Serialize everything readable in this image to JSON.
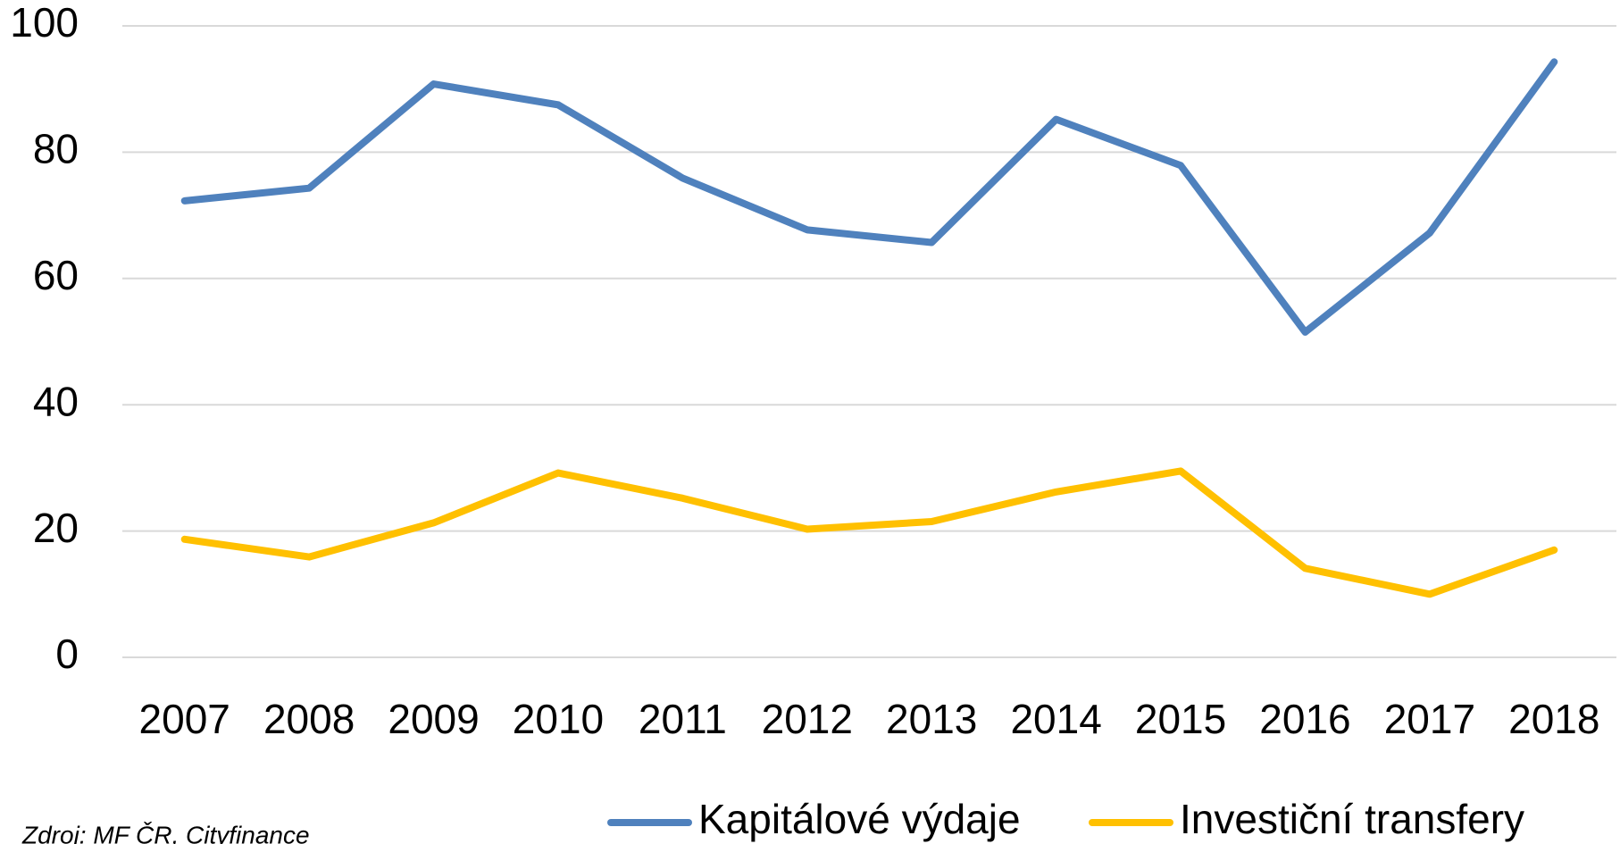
{
  "chart_data": {
    "type": "line",
    "categories": [
      "2007",
      "2008",
      "2009",
      "2010",
      "2011",
      "2012",
      "2013",
      "2014",
      "2015",
      "2016",
      "2017",
      "2018"
    ],
    "series": [
      {
        "name": "Kapitálové výdaje",
        "color": "#4f81bd",
        "values": [
          72.3,
          74.3,
          90.8,
          87.5,
          75.9,
          67.7,
          65.7,
          85.2,
          77.9,
          51.5,
          67.2,
          94.3
        ]
      },
      {
        "name": "Investiční transfery",
        "color": "#ffc000",
        "values": [
          18.7,
          15.9,
          21.3,
          29.2,
          25.2,
          20.3,
          21.5,
          26.2,
          29.5,
          14.1,
          10.0,
          17.0
        ]
      }
    ],
    "ylim": [
      0,
      100
    ],
    "yticks": [
      0,
      20,
      40,
      60,
      80,
      100
    ],
    "grid": true,
    "legend": "bottom",
    "source": "Zdroj: MF ČR, Cityfinance"
  }
}
